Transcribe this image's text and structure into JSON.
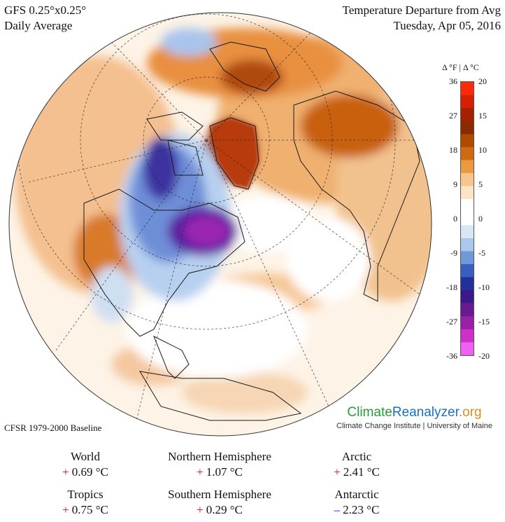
{
  "header": {
    "model": "GFS 0.25°x0.25°",
    "period": "Daily Average",
    "title": "Temperature Departure from Avg",
    "date": "Tuesday, Apr 05, 2016"
  },
  "colorbar": {
    "heading_f": "Δ °F",
    "heading_sep": "|",
    "heading_c": "Δ °C",
    "f_ticks": [
      "36",
      "27",
      "18",
      "9",
      "0",
      "-9",
      "-18",
      "-27",
      "-36"
    ],
    "c_ticks": [
      "20",
      "15",
      "10",
      "5",
      "0",
      "-5",
      "-10",
      "-15",
      "-20"
    ],
    "colors": [
      "#ff2a0a",
      "#d82000",
      "#a52200",
      "#8a2a00",
      "#b04a00",
      "#d06a10",
      "#ec9a40",
      "#f6c68c",
      "#fbe4c8",
      "#ffffff",
      "#ffffff",
      "#d8e6f6",
      "#a9c8ec",
      "#6f9ad8",
      "#3a5fc0",
      "#23309a",
      "#3a1a8a",
      "#6a1a90",
      "#9a20a8",
      "#cc30c8",
      "#f060f0"
    ]
  },
  "baseline": "CFSR 1979-2000 Baseline",
  "brand": {
    "part1": "Climate",
    "part2": "Reanalyzer",
    "part3": ".org",
    "subtitle": "Climate Change Institute | University of Maine"
  },
  "stats": [
    {
      "region": "World",
      "sign": "+",
      "value": "0.69 °C"
    },
    {
      "region": "Northern Hemisphere",
      "sign": "+",
      "value": "1.07 °C"
    },
    {
      "region": "Arctic",
      "sign": "+",
      "value": "2.41 °C"
    },
    {
      "region": "Tropics",
      "sign": "+",
      "value": "0.75 °C"
    },
    {
      "region": "Southern Hemisphere",
      "sign": "+",
      "value": "0.29 °C"
    },
    {
      "region": "Antarctic",
      "sign": "–",
      "value": "2.23 °C"
    }
  ]
}
